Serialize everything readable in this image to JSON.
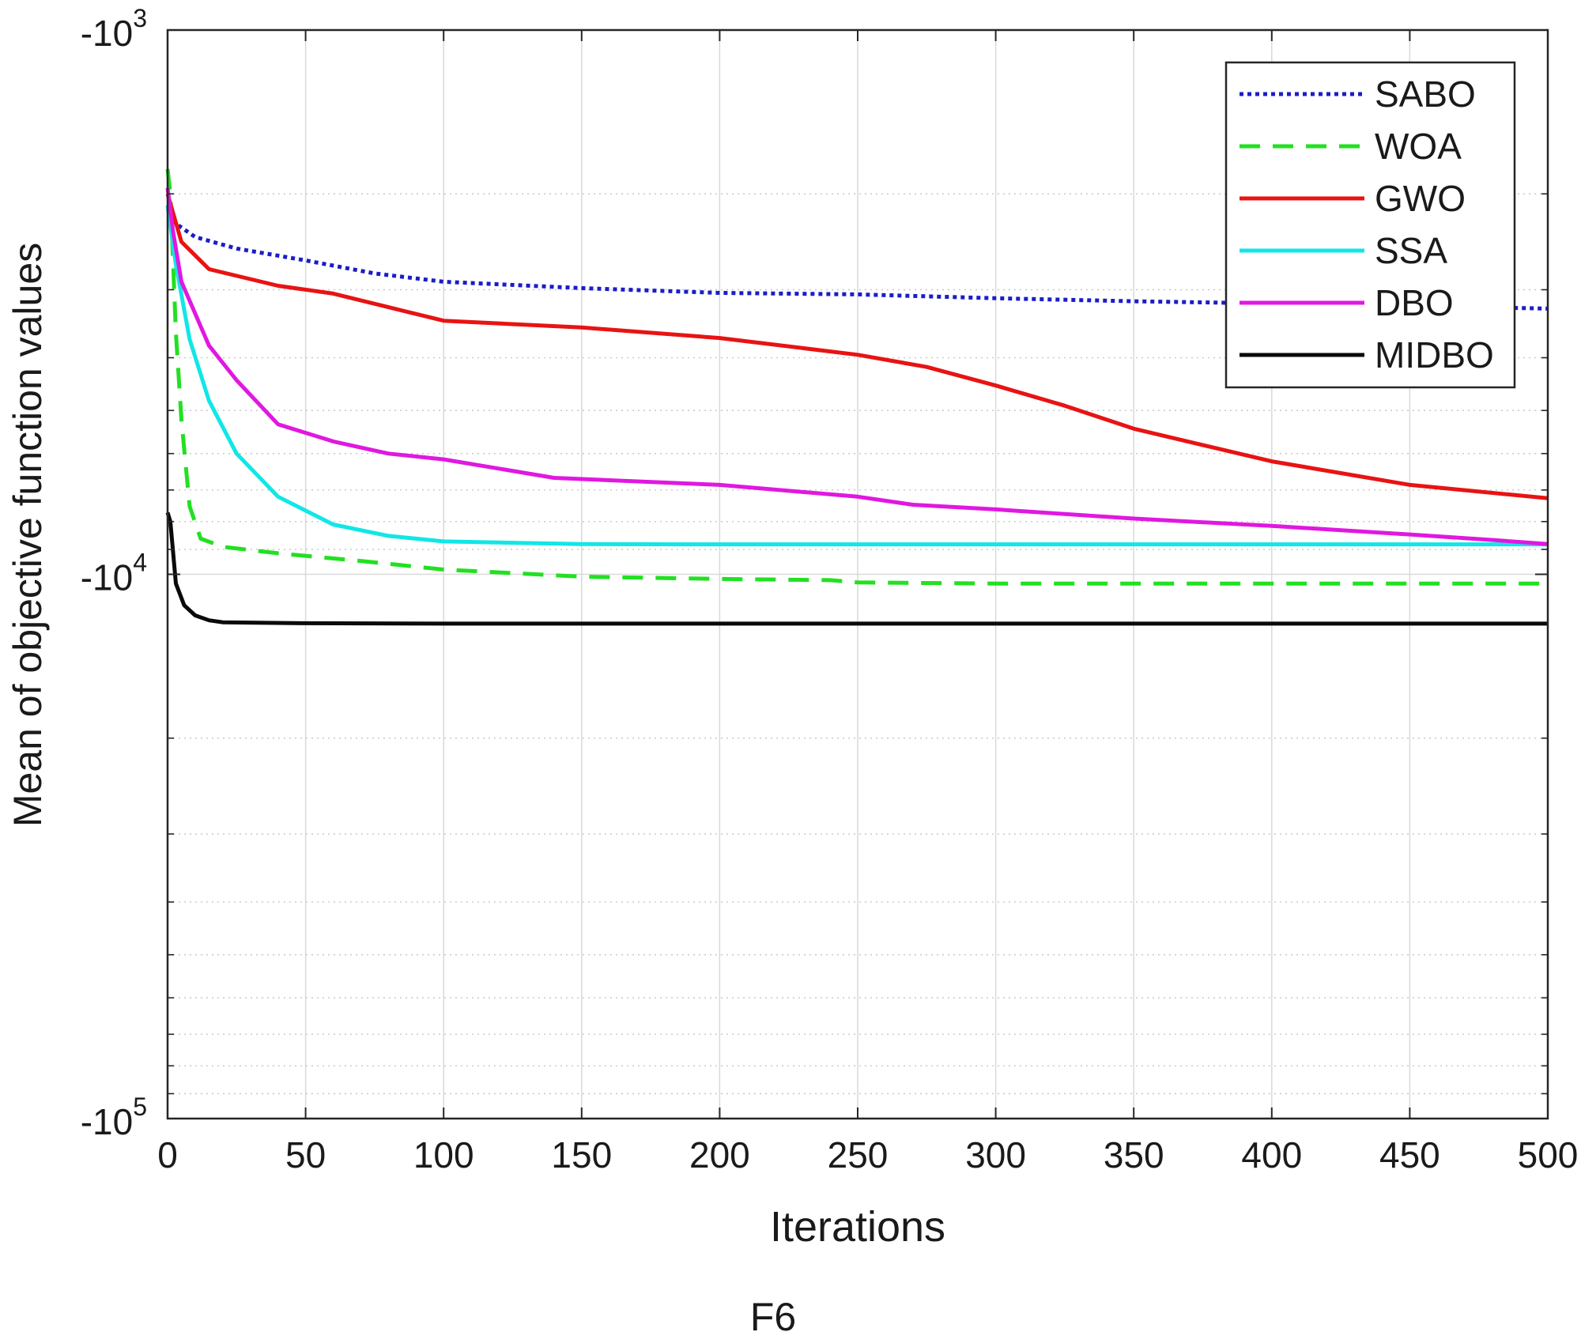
{
  "chart_data": {
    "type": "line",
    "xlabel": "Iterations",
    "ylabel": "Mean of objective function values",
    "caption": "F6",
    "x_ticks": [
      "0",
      "50",
      "100",
      "150",
      "200",
      "250",
      "300",
      "350",
      "400",
      "450",
      "500"
    ],
    "y_ticks": [
      {
        "base": "-10",
        "exp": "3"
      },
      {
        "base": "-10",
        "exp": "4"
      },
      {
        "base": "-10",
        "exp": "5"
      }
    ],
    "xlim": [
      0,
      500
    ],
    "ylim": [
      -100000,
      -1000
    ],
    "yscale": "log-negative",
    "grid": true,
    "legend_position": "top-right",
    "series": [
      {
        "name": "SABO",
        "color": "#1c1cc8",
        "style": "dotted",
        "points": [
          [
            0,
            -2100
          ],
          [
            2,
            -2250
          ],
          [
            10,
            -2400
          ],
          [
            25,
            -2520
          ],
          [
            50,
            -2650
          ],
          [
            75,
            -2800
          ],
          [
            100,
            -2900
          ],
          [
            150,
            -2980
          ],
          [
            200,
            -3040
          ],
          [
            250,
            -3060
          ],
          [
            300,
            -3110
          ],
          [
            350,
            -3150
          ],
          [
            400,
            -3180
          ],
          [
            450,
            -3210
          ],
          [
            500,
            -3250
          ]
        ]
      },
      {
        "name": "WOA",
        "color": "#22e022",
        "style": "dashed",
        "points": [
          [
            0,
            -1800
          ],
          [
            1,
            -2000
          ],
          [
            3,
            -3600
          ],
          [
            5,
            -5200
          ],
          [
            8,
            -7500
          ],
          [
            12,
            -8600
          ],
          [
            20,
            -8900
          ],
          [
            40,
            -9150
          ],
          [
            70,
            -9450
          ],
          [
            100,
            -9800
          ],
          [
            150,
            -10100
          ],
          [
            200,
            -10200
          ],
          [
            240,
            -10250
          ],
          [
            250,
            -10350
          ],
          [
            300,
            -10400
          ],
          [
            500,
            -10400
          ]
        ]
      },
      {
        "name": "GWO",
        "color": "#e81313",
        "style": "solid",
        "points": [
          [
            0,
            -2000
          ],
          [
            5,
            -2450
          ],
          [
            15,
            -2750
          ],
          [
            40,
            -2950
          ],
          [
            60,
            -3050
          ],
          [
            80,
            -3230
          ],
          [
            100,
            -3420
          ],
          [
            150,
            -3520
          ],
          [
            200,
            -3680
          ],
          [
            250,
            -3950
          ],
          [
            275,
            -4160
          ],
          [
            300,
            -4500
          ],
          [
            325,
            -4900
          ],
          [
            350,
            -5400
          ],
          [
            400,
            -6200
          ],
          [
            450,
            -6850
          ],
          [
            500,
            -7250
          ]
        ]
      },
      {
        "name": "SSA",
        "color": "#12e6e6",
        "style": "solid",
        "points": [
          [
            0,
            -2100
          ],
          [
            3,
            -2700
          ],
          [
            8,
            -3700
          ],
          [
            15,
            -4800
          ],
          [
            25,
            -6000
          ],
          [
            40,
            -7200
          ],
          [
            60,
            -8100
          ],
          [
            80,
            -8500
          ],
          [
            100,
            -8700
          ],
          [
            150,
            -8800
          ],
          [
            200,
            -8810
          ],
          [
            300,
            -8810
          ],
          [
            400,
            -8810
          ],
          [
            500,
            -8810
          ]
        ]
      },
      {
        "name": "DBO",
        "color": "#e018e0",
        "style": "solid",
        "points": [
          [
            0,
            -1950
          ],
          [
            2,
            -2350
          ],
          [
            5,
            -2900
          ],
          [
            15,
            -3800
          ],
          [
            25,
            -4400
          ],
          [
            40,
            -5300
          ],
          [
            60,
            -5700
          ],
          [
            80,
            -6000
          ],
          [
            100,
            -6150
          ],
          [
            140,
            -6650
          ],
          [
            200,
            -6850
          ],
          [
            250,
            -7200
          ],
          [
            270,
            -7450
          ],
          [
            300,
            -7600
          ],
          [
            350,
            -7900
          ],
          [
            400,
            -8150
          ],
          [
            450,
            -8450
          ],
          [
            480,
            -8650
          ],
          [
            500,
            -8800
          ]
        ]
      },
      {
        "name": "MIDBO",
        "color": "#0a0a0a",
        "style": "solid",
        "points": [
          [
            0,
            -7700
          ],
          [
            1,
            -8000
          ],
          [
            3,
            -10400
          ],
          [
            6,
            -11400
          ],
          [
            10,
            -11900
          ],
          [
            15,
            -12150
          ],
          [
            20,
            -12250
          ],
          [
            50,
            -12300
          ],
          [
            100,
            -12320
          ],
          [
            500,
            -12320
          ]
        ]
      }
    ]
  }
}
